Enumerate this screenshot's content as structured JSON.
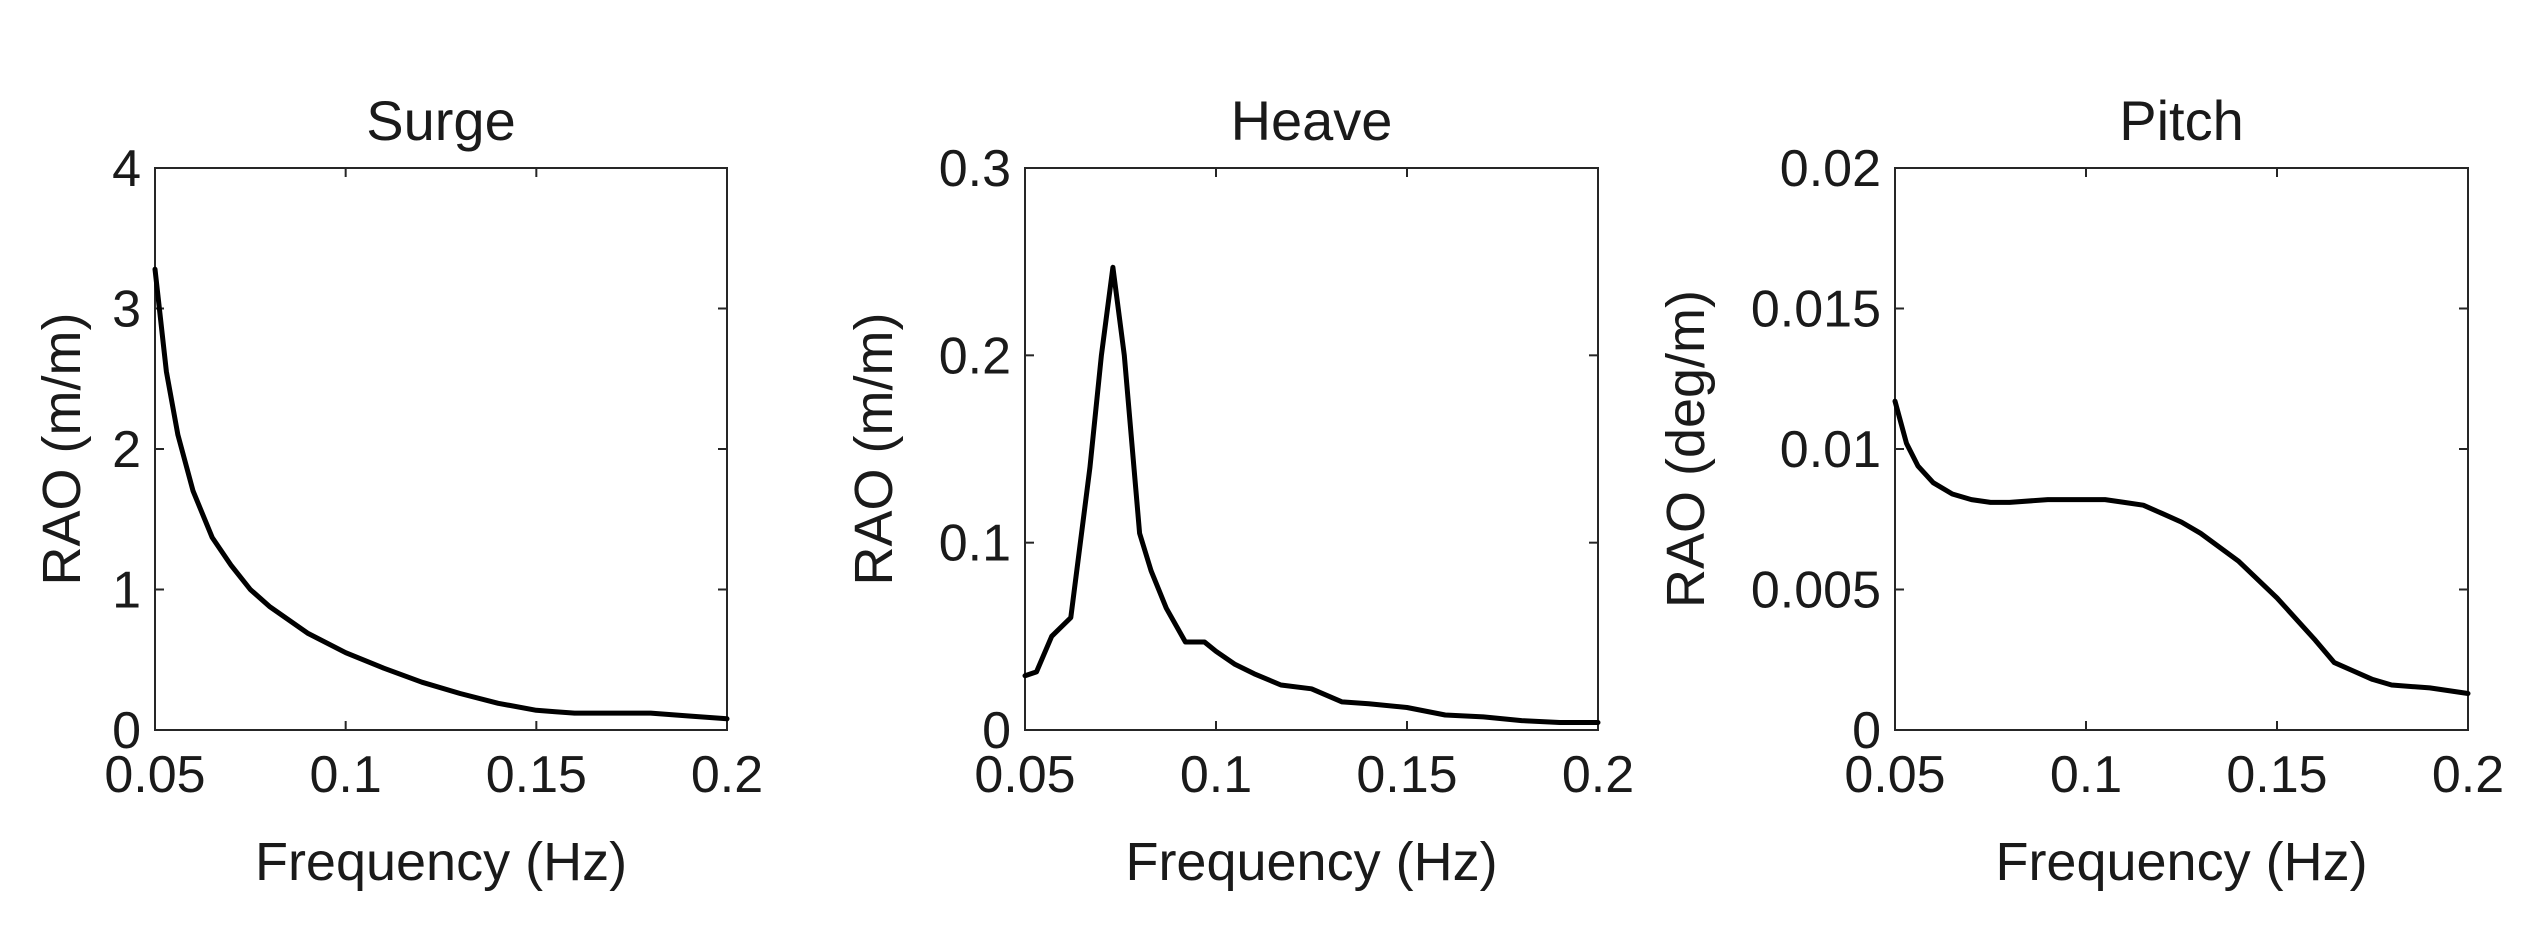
{
  "chart_data": [
    {
      "type": "line",
      "title": "Surge",
      "xlabel": "Frequency (Hz)",
      "ylabel": "RAO (m/m)",
      "xlim": [
        0.05,
        0.2
      ],
      "ylim": [
        0,
        4
      ],
      "xticks": [
        0.05,
        0.1,
        0.15,
        0.2
      ],
      "xtick_labels": [
        "0.05",
        "0.1",
        "0.15",
        "0.2"
      ],
      "yticks": [
        0,
        1,
        2,
        3,
        4
      ],
      "ytick_labels": [
        "0",
        "1",
        "2",
        "3",
        "4"
      ],
      "grid": false,
      "series": [
        {
          "color": "#000000",
          "x": [
            0.05,
            0.053,
            0.056,
            0.06,
            0.065,
            0.07,
            0.075,
            0.08,
            0.09,
            0.1,
            0.11,
            0.12,
            0.13,
            0.14,
            0.15,
            0.155,
            0.16,
            0.17,
            0.18,
            0.19,
            0.2
          ],
          "y": [
            3.28,
            2.55,
            2.1,
            1.7,
            1.37,
            1.17,
            1.0,
            0.88,
            0.69,
            0.55,
            0.44,
            0.34,
            0.26,
            0.19,
            0.14,
            0.13,
            0.12,
            0.12,
            0.12,
            0.1,
            0.08
          ]
        }
      ]
    },
    {
      "type": "line",
      "title": "Heave",
      "xlabel": "Frequency (Hz)",
      "ylabel": "RAO (m/m)",
      "xlim": [
        0.05,
        0.2
      ],
      "ylim": [
        0,
        0.3
      ],
      "xticks": [
        0.05,
        0.1,
        0.15,
        0.2
      ],
      "xtick_labels": [
        "0.05",
        "0.1",
        "0.15",
        "0.2"
      ],
      "yticks": [
        0,
        0.1,
        0.2,
        0.3
      ],
      "ytick_labels": [
        "0",
        "0.1",
        "0.2",
        "0.3"
      ],
      "grid": false,
      "series": [
        {
          "color": "#000000",
          "x": [
            0.05,
            0.053,
            0.057,
            0.062,
            0.067,
            0.07,
            0.073,
            0.076,
            0.08,
            0.083,
            0.087,
            0.092,
            0.097,
            0.1,
            0.105,
            0.11,
            0.117,
            0.125,
            0.133,
            0.14,
            0.15,
            0.16,
            0.17,
            0.18,
            0.19,
            0.2
          ],
          "y": [
            0.029,
            0.031,
            0.05,
            0.06,
            0.14,
            0.2,
            0.247,
            0.2,
            0.105,
            0.085,
            0.065,
            0.047,
            0.047,
            0.042,
            0.035,
            0.03,
            0.024,
            0.022,
            0.015,
            0.014,
            0.012,
            0.008,
            0.007,
            0.005,
            0.004,
            0.004
          ]
        }
      ]
    },
    {
      "type": "line",
      "title": "Pitch",
      "xlabel": "Frequency (Hz)",
      "ylabel": "RAO (deg/m)",
      "xlim": [
        0.05,
        0.2
      ],
      "ylim": [
        0,
        0.02
      ],
      "xticks": [
        0.05,
        0.1,
        0.15,
        0.2
      ],
      "xtick_labels": [
        "0.05",
        "0.1",
        "0.15",
        "0.2"
      ],
      "yticks": [
        0,
        0.005,
        0.01,
        0.015,
        0.02
      ],
      "ytick_labels": [
        "0",
        "0.005",
        "0.01",
        "0.015",
        "0.02"
      ],
      "grid": false,
      "series": [
        {
          "color": "#000000",
          "x": [
            0.05,
            0.053,
            0.056,
            0.06,
            0.065,
            0.07,
            0.075,
            0.08,
            0.09,
            0.1,
            0.105,
            0.11,
            0.115,
            0.12,
            0.125,
            0.13,
            0.14,
            0.15,
            0.16,
            0.165,
            0.17,
            0.175,
            0.18,
            0.19,
            0.2
          ],
          "y": [
            0.0117,
            0.0102,
            0.0094,
            0.0088,
            0.0084,
            0.0082,
            0.0081,
            0.0081,
            0.0082,
            0.0082,
            0.0082,
            0.0081,
            0.008,
            0.0077,
            0.0074,
            0.007,
            0.006,
            0.0047,
            0.0032,
            0.0024,
            0.0021,
            0.0018,
            0.0016,
            0.0015,
            0.0013
          ]
        }
      ]
    }
  ]
}
